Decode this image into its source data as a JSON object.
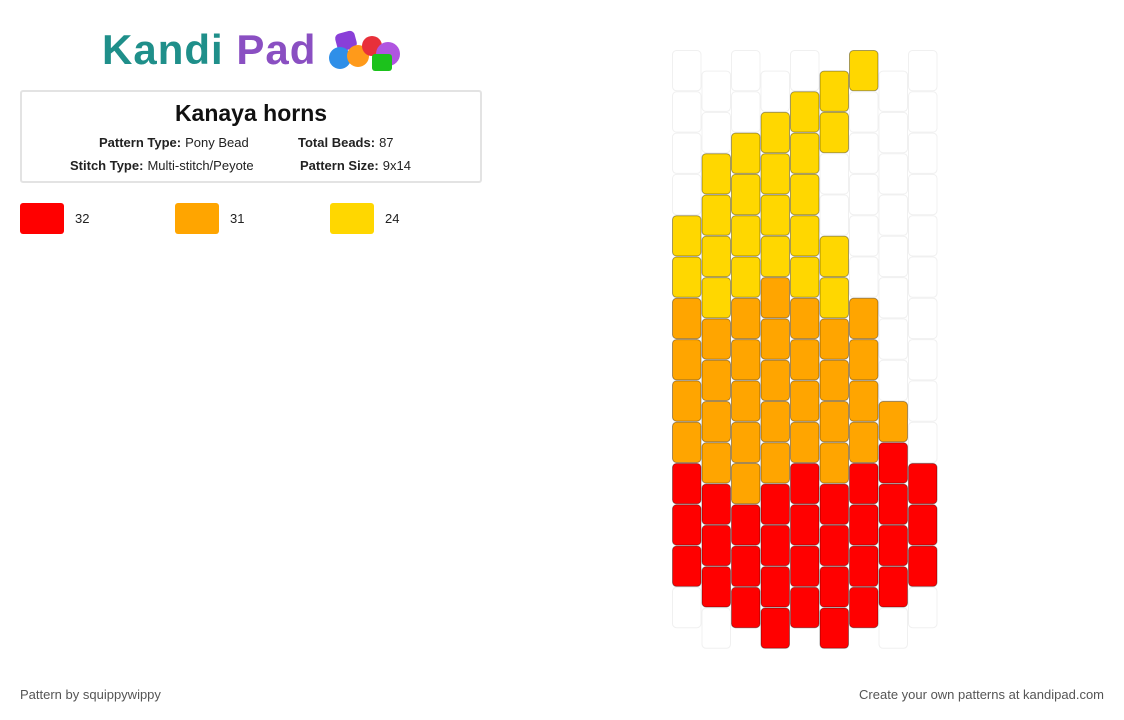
{
  "header": {
    "brand_left": "Kandi",
    "brand_right": "Pad"
  },
  "pattern": {
    "title": "Kanaya horns",
    "info": [
      {
        "label": "Pattern Type:",
        "value": "Pony Bead"
      },
      {
        "label": "Total Beads:",
        "value": "87"
      },
      {
        "label": "Stitch Type:",
        "value": "Multi-stitch/Peyote"
      },
      {
        "label": "Pattern Size:",
        "value": "9x14"
      }
    ],
    "colors": [
      {
        "color": "#ff0000",
        "count": 32
      },
      {
        "color": "#ffa500",
        "count": 31
      },
      {
        "color": "#ffd700",
        "count": 24
      }
    ],
    "grid": [
      [
        null,
        null,
        null,
        null,
        "#ffd700",
        "#ffd700",
        "#ffa500",
        "#ffa500",
        "#ffa500",
        "#ffa500",
        "#ff0000",
        "#ff0000",
        "#ff0000",
        null
      ],
      [
        null,
        null,
        "#ffd700",
        "#ffd700",
        "#ffd700",
        "#ffd700",
        "#ffa500",
        "#ffa500",
        "#ffa500",
        "#ffa500",
        "#ff0000",
        "#ff0000",
        "#ff0000",
        null
      ],
      [
        null,
        null,
        "#ffd700",
        "#ffd700",
        "#ffd700",
        "#ffd700",
        "#ffa500",
        "#ffa500",
        "#ffa500",
        "#ffa500",
        "#ffa500",
        "#ff0000",
        "#ff0000",
        "#ff0000"
      ],
      [
        null,
        "#ffd700",
        "#ffd700",
        "#ffd700",
        "#ffd700",
        "#ffa500",
        "#ffa500",
        "#ffa500",
        "#ffa500",
        "#ffa500",
        "#ff0000",
        "#ff0000",
        "#ff0000",
        "#ff0000"
      ],
      [
        null,
        "#ffd700",
        "#ffd700",
        "#ffd700",
        "#ffd700",
        "#ffd700",
        "#ffa500",
        "#ffa500",
        "#ffa500",
        "#ffa500",
        "#ff0000",
        "#ff0000",
        "#ff0000",
        "#ff0000"
      ],
      [
        "#ffd700",
        "#ffd700",
        null,
        null,
        "#ffd700",
        "#ffd700",
        "#ffa500",
        "#ffa500",
        "#ffa500",
        "#ffa500",
        "#ff0000",
        "#ff0000",
        "#ff0000",
        "#ff0000"
      ],
      [
        "#ffd700",
        null,
        null,
        null,
        null,
        null,
        "#ffa500",
        "#ffa500",
        "#ffa500",
        "#ffa500",
        "#ff0000",
        "#ff0000",
        "#ff0000",
        "#ff0000"
      ],
      [
        null,
        null,
        null,
        null,
        null,
        null,
        null,
        null,
        "#ffa500",
        "#ff0000",
        "#ff0000",
        "#ff0000",
        "#ff0000",
        null
      ],
      [
        null,
        null,
        null,
        null,
        null,
        null,
        null,
        null,
        null,
        null,
        "#ff0000",
        "#ff0000",
        "#ff0000",
        null
      ]
    ]
  },
  "footer": {
    "left": "Pattern by squippywippy",
    "right": "Create your own patterns at kandipad.com"
  }
}
